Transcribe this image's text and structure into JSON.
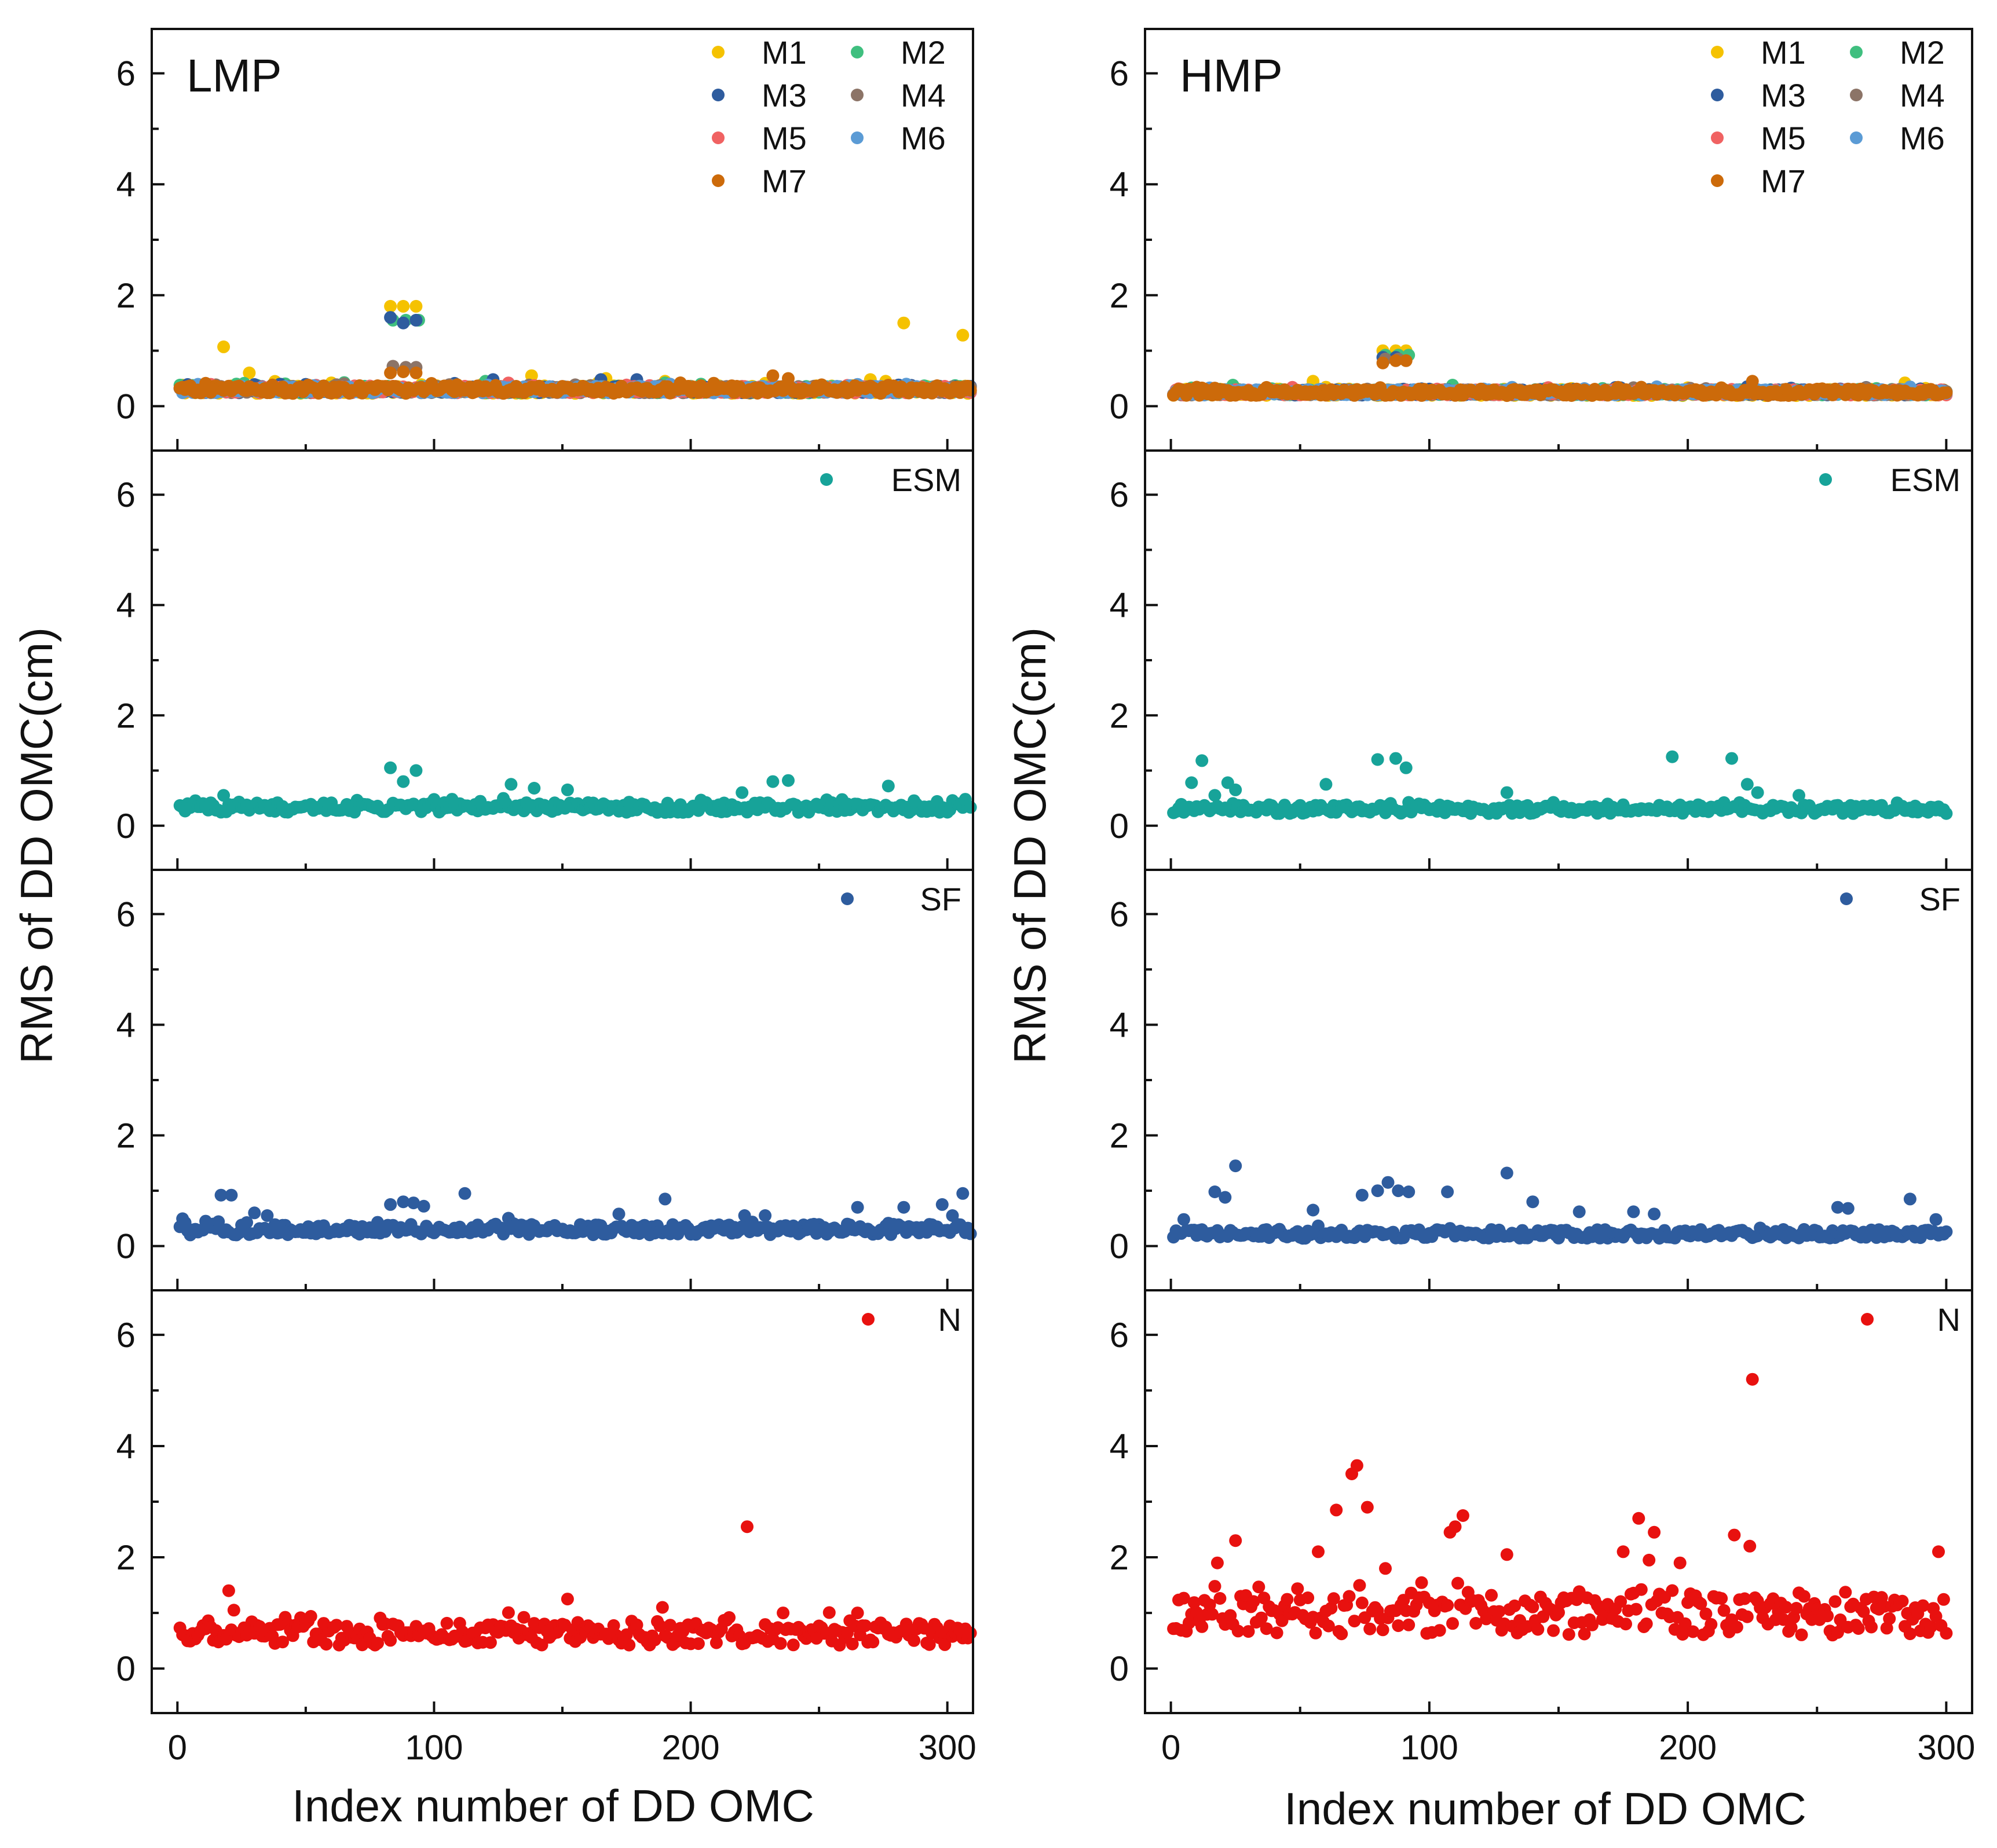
{
  "chart_data": {
    "type": "scatter",
    "ylabel": "RMS of DD OMC(cm)",
    "xlabel": "Index number of DD OMC",
    "ylim": [
      -0.8,
      6.8
    ],
    "y_ticks": [
      0,
      2,
      4,
      6
    ],
    "y_tick_labels": [
      "0",
      "2",
      "4",
      "6"
    ],
    "colors": {
      "M1": "#F5C200",
      "M2": "#3FBF7F",
      "M3": "#2E5C9E",
      "M4": "#8C7467",
      "M5": "#F06262",
      "M6": "#5B9BD5",
      "M7": "#CC6A0A",
      "ESM": "#17A399",
      "SF": "#2E5C9E",
      "N": "#E8110F"
    },
    "columns": [
      {
        "tag": "LMP",
        "n_points": 309,
        "xlim": [
          -10,
          310
        ],
        "x_ticks": [
          0,
          100,
          200,
          300
        ],
        "x_tick_labels": [
          "0",
          "100",
          "200",
          "300"
        ],
        "rows": [
          {
            "legend": [
              "M1",
              "M2",
              "M3",
              "M4",
              "M5",
              "M6",
              "M7"
            ],
            "series": [
              {
                "name": "M1",
                "base": 0.3,
                "spread": 0.07,
                "outliers": [
                  [
                    2,
                    0.38
                  ],
                  [
                    18,
                    1.07
                  ],
                  [
                    28,
                    0.6
                  ],
                  [
                    60,
                    0.42
                  ],
                  [
                    83,
                    1.8
                  ],
                  [
                    88,
                    1.8
                  ],
                  [
                    93,
                    1.8
                  ],
                  [
                    138,
                    0.55
                  ],
                  [
                    167,
                    0.5
                  ],
                  [
                    190,
                    0.45
                  ],
                  [
                    270,
                    0.48
                  ],
                  [
                    276,
                    0.45
                  ],
                  [
                    283,
                    1.5
                  ],
                  [
                    306,
                    1.28
                  ]
                ]
              },
              {
                "name": "M2",
                "base": 0.3,
                "spread": 0.06,
                "outliers": [
                  [
                    84,
                    1.55
                  ],
                  [
                    89,
                    1.55
                  ],
                  [
                    94,
                    1.55
                  ],
                  [
                    120,
                    0.45
                  ],
                  [
                    190,
                    0.42
                  ]
                ]
              },
              {
                "name": "M3",
                "base": 0.3,
                "spread": 0.06,
                "outliers": [
                  [
                    83,
                    1.6
                  ],
                  [
                    88,
                    1.5
                  ],
                  [
                    93,
                    1.55
                  ],
                  [
                    123,
                    0.48
                  ],
                  [
                    165,
                    0.48
                  ],
                  [
                    179,
                    0.48
                  ]
                ]
              },
              {
                "name": "M4",
                "base": 0.3,
                "spread": 0.06,
                "outliers": [
                  [
                    84,
                    0.72
                  ],
                  [
                    89,
                    0.7
                  ],
                  [
                    93,
                    0.7
                  ]
                ]
              },
              {
                "name": "M5",
                "base": 0.3,
                "spread": 0.06,
                "outliers": []
              },
              {
                "name": "M6",
                "base": 0.3,
                "spread": 0.06,
                "outliers": []
              },
              {
                "name": "M7",
                "base": 0.3,
                "spread": 0.07,
                "outliers": [
                  [
                    83,
                    0.6
                  ],
                  [
                    88,
                    0.62
                  ],
                  [
                    93,
                    0.6
                  ],
                  [
                    232,
                    0.55
                  ],
                  [
                    238,
                    0.5
                  ]
                ]
              }
            ]
          },
          {
            "legend": [
              "ESM"
            ],
            "series": [
              {
                "name": "ESM",
                "base": 0.33,
                "spread": 0.09,
                "outliers": [
                  [
                    18,
                    0.55
                  ],
                  [
                    83,
                    1.05
                  ],
                  [
                    88,
                    0.8
                  ],
                  [
                    93,
                    1.0
                  ],
                  [
                    130,
                    0.75
                  ],
                  [
                    139,
                    0.68
                  ],
                  [
                    152,
                    0.65
                  ],
                  [
                    220,
                    0.6
                  ],
                  [
                    232,
                    0.8
                  ],
                  [
                    238,
                    0.82
                  ],
                  [
                    277,
                    0.72
                  ],
                  [
                    307,
                    0.48
                  ]
                ]
              }
            ]
          },
          {
            "legend": [
              "SF"
            ],
            "series": [
              {
                "name": "SF",
                "base": 0.3,
                "spread": 0.1,
                "outliers": [
                  [
                    17,
                    0.92
                  ],
                  [
                    21,
                    0.92
                  ],
                  [
                    30,
                    0.6
                  ],
                  [
                    35,
                    0.55
                  ],
                  [
                    83,
                    0.75
                  ],
                  [
                    88,
                    0.8
                  ],
                  [
                    92,
                    0.78
                  ],
                  [
                    96,
                    0.72
                  ],
                  [
                    112,
                    0.95
                  ],
                  [
                    172,
                    0.58
                  ],
                  [
                    190,
                    0.85
                  ],
                  [
                    221,
                    0.55
                  ],
                  [
                    229,
                    0.55
                  ],
                  [
                    265,
                    0.7
                  ],
                  [
                    283,
                    0.7
                  ],
                  [
                    298,
                    0.75
                  ],
                  [
                    302,
                    0.55
                  ],
                  [
                    306,
                    0.95
                  ]
                ]
              }
            ]
          },
          {
            "legend": [
              "N"
            ],
            "series": [
              {
                "name": "N",
                "base": 0.62,
                "spread": 0.2,
                "outliers": [
                  [
                    20,
                    1.4
                  ],
                  [
                    22,
                    1.05
                  ],
                  [
                    152,
                    1.25
                  ],
                  [
                    189,
                    1.1
                  ],
                  [
                    222,
                    2.55
                  ],
                  [
                    236,
                    1.0
                  ],
                  [
                    265,
                    1.0
                  ],
                  [
                    305,
                    0.68
                  ]
                ]
              }
            ]
          }
        ]
      },
      {
        "tag": "HMP",
        "n_points": 300,
        "xlim": [
          -10,
          310
        ],
        "x_ticks": [
          0,
          100,
          200,
          300
        ],
        "x_tick_labels": [
          "0",
          "100",
          "200",
          "300"
        ],
        "rows": [
          {
            "legend": [
              "M1",
              "M2",
              "M3",
              "M4",
              "M5",
              "M6",
              "M7"
            ],
            "series": [
              {
                "name": "M1",
                "base": 0.25,
                "spread": 0.06,
                "outliers": [
                  [
                    55,
                    0.45
                  ],
                  [
                    82,
                    1.0
                  ],
                  [
                    87,
                    1.0
                  ],
                  [
                    91,
                    1.0
                  ],
                  [
                    284,
                    0.42
                  ]
                ]
              },
              {
                "name": "M2",
                "base": 0.25,
                "spread": 0.05,
                "outliers": [
                  [
                    24,
                    0.38
                  ],
                  [
                    83,
                    0.92
                  ],
                  [
                    88,
                    0.92
                  ],
                  [
                    92,
                    0.92
                  ],
                  [
                    109,
                    0.38
                  ]
                ]
              },
              {
                "name": "M3",
                "base": 0.25,
                "spread": 0.05,
                "outliers": [
                  [
                    82,
                    0.88
                  ],
                  [
                    87,
                    0.88
                  ]
                ]
              },
              {
                "name": "M4",
                "base": 0.25,
                "spread": 0.05,
                "outliers": [
                  [
                    83,
                    0.85
                  ],
                  [
                    88,
                    0.85
                  ]
                ]
              },
              {
                "name": "M5",
                "base": 0.25,
                "spread": 0.05,
                "outliers": []
              },
              {
                "name": "M6",
                "base": 0.25,
                "spread": 0.05,
                "outliers": []
              },
              {
                "name": "M7",
                "base": 0.25,
                "spread": 0.06,
                "outliers": [
                  [
                    82,
                    0.78
                  ],
                  [
                    87,
                    0.82
                  ],
                  [
                    91,
                    0.82
                  ],
                  [
                    225,
                    0.45
                  ]
                ]
              }
            ]
          },
          {
            "legend": [
              "ESM"
            ],
            "series": [
              {
                "name": "ESM",
                "base": 0.3,
                "spread": 0.08,
                "outliers": [
                  [
                    8,
                    0.78
                  ],
                  [
                    12,
                    1.18
                  ],
                  [
                    17,
                    0.55
                  ],
                  [
                    22,
                    0.78
                  ],
                  [
                    25,
                    0.65
                  ],
                  [
                    60,
                    0.75
                  ],
                  [
                    80,
                    1.2
                  ],
                  [
                    87,
                    1.22
                  ],
                  [
                    91,
                    1.05
                  ],
                  [
                    130,
                    0.6
                  ],
                  [
                    194,
                    1.25
                  ],
                  [
                    217,
                    1.22
                  ],
                  [
                    223,
                    0.75
                  ],
                  [
                    227,
                    0.6
                  ],
                  [
                    243,
                    0.55
                  ]
                ]
              }
            ]
          },
          {
            "legend": [
              "SF"
            ],
            "series": [
              {
                "name": "SF",
                "base": 0.22,
                "spread": 0.08,
                "outliers": [
                  [
                    5,
                    0.48
                  ],
                  [
                    17,
                    0.98
                  ],
                  [
                    21,
                    0.88
                  ],
                  [
                    25,
                    1.45
                  ],
                  [
                    55,
                    0.65
                  ],
                  [
                    74,
                    0.92
                  ],
                  [
                    80,
                    1.0
                  ],
                  [
                    84,
                    1.15
                  ],
                  [
                    88,
                    1.0
                  ],
                  [
                    92,
                    0.98
                  ],
                  [
                    107,
                    0.98
                  ],
                  [
                    130,
                    1.32
                  ],
                  [
                    140,
                    0.8
                  ],
                  [
                    158,
                    0.62
                  ],
                  [
                    179,
                    0.62
                  ],
                  [
                    187,
                    0.58
                  ],
                  [
                    258,
                    0.7
                  ],
                  [
                    262,
                    0.68
                  ],
                  [
                    286,
                    0.85
                  ],
                  [
                    296,
                    0.48
                  ]
                ]
              }
            ]
          },
          {
            "legend": [
              "N"
            ],
            "series": [
              {
                "name": "N",
                "base": 0.95,
                "spread": 0.35,
                "outliers": [
                  [
                    18,
                    1.9
                  ],
                  [
                    25,
                    2.3
                  ],
                  [
                    57,
                    2.1
                  ],
                  [
                    64,
                    2.85
                  ],
                  [
                    70,
                    3.5
                  ],
                  [
                    72,
                    3.65
                  ],
                  [
                    76,
                    2.9
                  ],
                  [
                    83,
                    1.8
                  ],
                  [
                    108,
                    2.45
                  ],
                  [
                    110,
                    2.55
                  ],
                  [
                    113,
                    2.75
                  ],
                  [
                    130,
                    2.05
                  ],
                  [
                    175,
                    2.1
                  ],
                  [
                    181,
                    2.7
                  ],
                  [
                    185,
                    1.95
                  ],
                  [
                    187,
                    2.45
                  ],
                  [
                    197,
                    1.9
                  ],
                  [
                    218,
                    2.4
                  ],
                  [
                    224,
                    2.2
                  ],
                  [
                    225,
                    5.2
                  ],
                  [
                    297,
                    2.1
                  ]
                ]
              }
            ]
          }
        ]
      }
    ]
  }
}
